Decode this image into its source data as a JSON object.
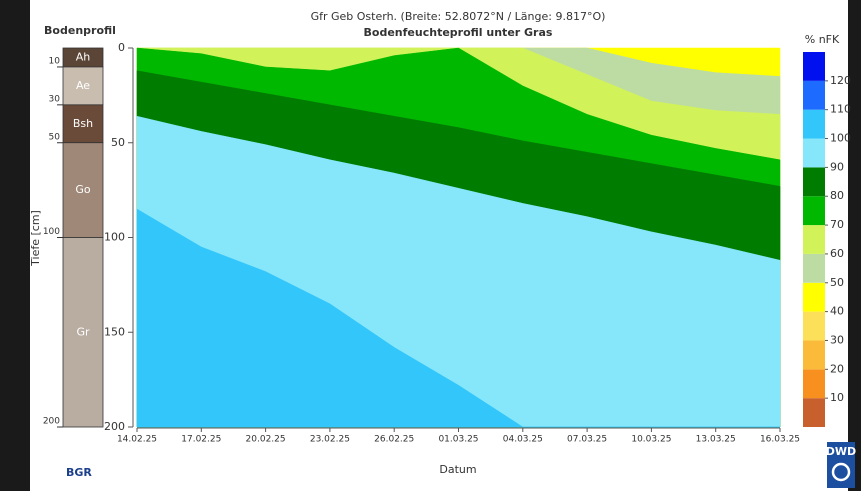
{
  "chart_data": {
    "type": "contour",
    "title": "Gfr Geb Osterh. (Breite: 52.8072°N / Länge: 9.817°O)",
    "subtitle": "Bodenfeuchteprofil unter Gras",
    "xlabel": "Datum",
    "categories": [
      "14.02.25",
      "17.02.25",
      "20.02.25",
      "23.02.25",
      "26.02.25",
      "01.03.25",
      "04.03.25",
      "07.03.25",
      "10.03.25",
      "13.03.25",
      "16.03.25"
    ],
    "ylim": [
      0,
      200
    ],
    "yticks": [
      0,
      50,
      100,
      150,
      200
    ],
    "contours": [
      {
        "level": 40,
        "values": [
          0,
          0,
          0,
          0,
          0,
          0,
          0,
          0,
          0,
          0,
          0
        ]
      },
      {
        "level": 50,
        "values": [
          0,
          0,
          0,
          0,
          0,
          0,
          0,
          0,
          8,
          13,
          15
        ]
      },
      {
        "level": 60,
        "values": [
          0,
          0,
          0,
          0,
          0,
          0,
          0,
          14,
          28,
          33,
          35
        ]
      },
      {
        "level": 70,
        "values": [
          0,
          3,
          10,
          12,
          4,
          0,
          20,
          35,
          46,
          53,
          59
        ]
      },
      {
        "level": 80,
        "values": [
          12,
          18,
          24,
          30,
          36,
          42,
          49,
          55,
          61,
          67,
          73
        ]
      },
      {
        "level": 90,
        "values": [
          36,
          44,
          51,
          59,
          66,
          74,
          82,
          89,
          97,
          104,
          112
        ]
      },
      {
        "level": 100,
        "values": [
          85,
          105,
          118,
          135,
          158,
          178,
          200,
          200,
          200,
          200,
          200
        ]
      }
    ],
    "colorbar": {
      "title": "% nFK",
      "levels": [
        0,
        10,
        20,
        30,
        40,
        50,
        60,
        70,
        80,
        90,
        100,
        110,
        120,
        130
      ],
      "colors": [
        "#c8602e",
        "#f7901e",
        "#fbbb3a",
        "#fde05a",
        "#ffff00",
        "#bcdca4",
        "#d2f25a",
        "#00b800",
        "#007c00",
        "#86e6fa",
        "#32c6fa",
        "#1e6cff",
        "#0010ee"
      ],
      "ticks": [
        10,
        20,
        30,
        40,
        50,
        60,
        70,
        80,
        90,
        100,
        110,
        120
      ]
    },
    "soil_profile": {
      "title": "Bodenprofil",
      "ylabel": "Tiefe [cm]",
      "ylim": [
        0,
        200
      ],
      "yticks": [
        10,
        30,
        50,
        100,
        200
      ],
      "layers": [
        {
          "name": "Ah",
          "top": 0,
          "bottom": 10,
          "color": "#5b4536"
        },
        {
          "name": "Ae",
          "top": 10,
          "bottom": 30,
          "color": "#c9bdb0"
        },
        {
          "name": "Bsh",
          "top": 30,
          "bottom": 50,
          "color": "#6a4a38"
        },
        {
          "name": "Go",
          "top": 50,
          "bottom": 100,
          "color": "#a08878"
        },
        {
          "name": "Gr",
          "top": 100,
          "bottom": 200,
          "color": "#b9ada1"
        }
      ]
    },
    "logos": {
      "left": "BGR",
      "right": "DWD"
    }
  }
}
